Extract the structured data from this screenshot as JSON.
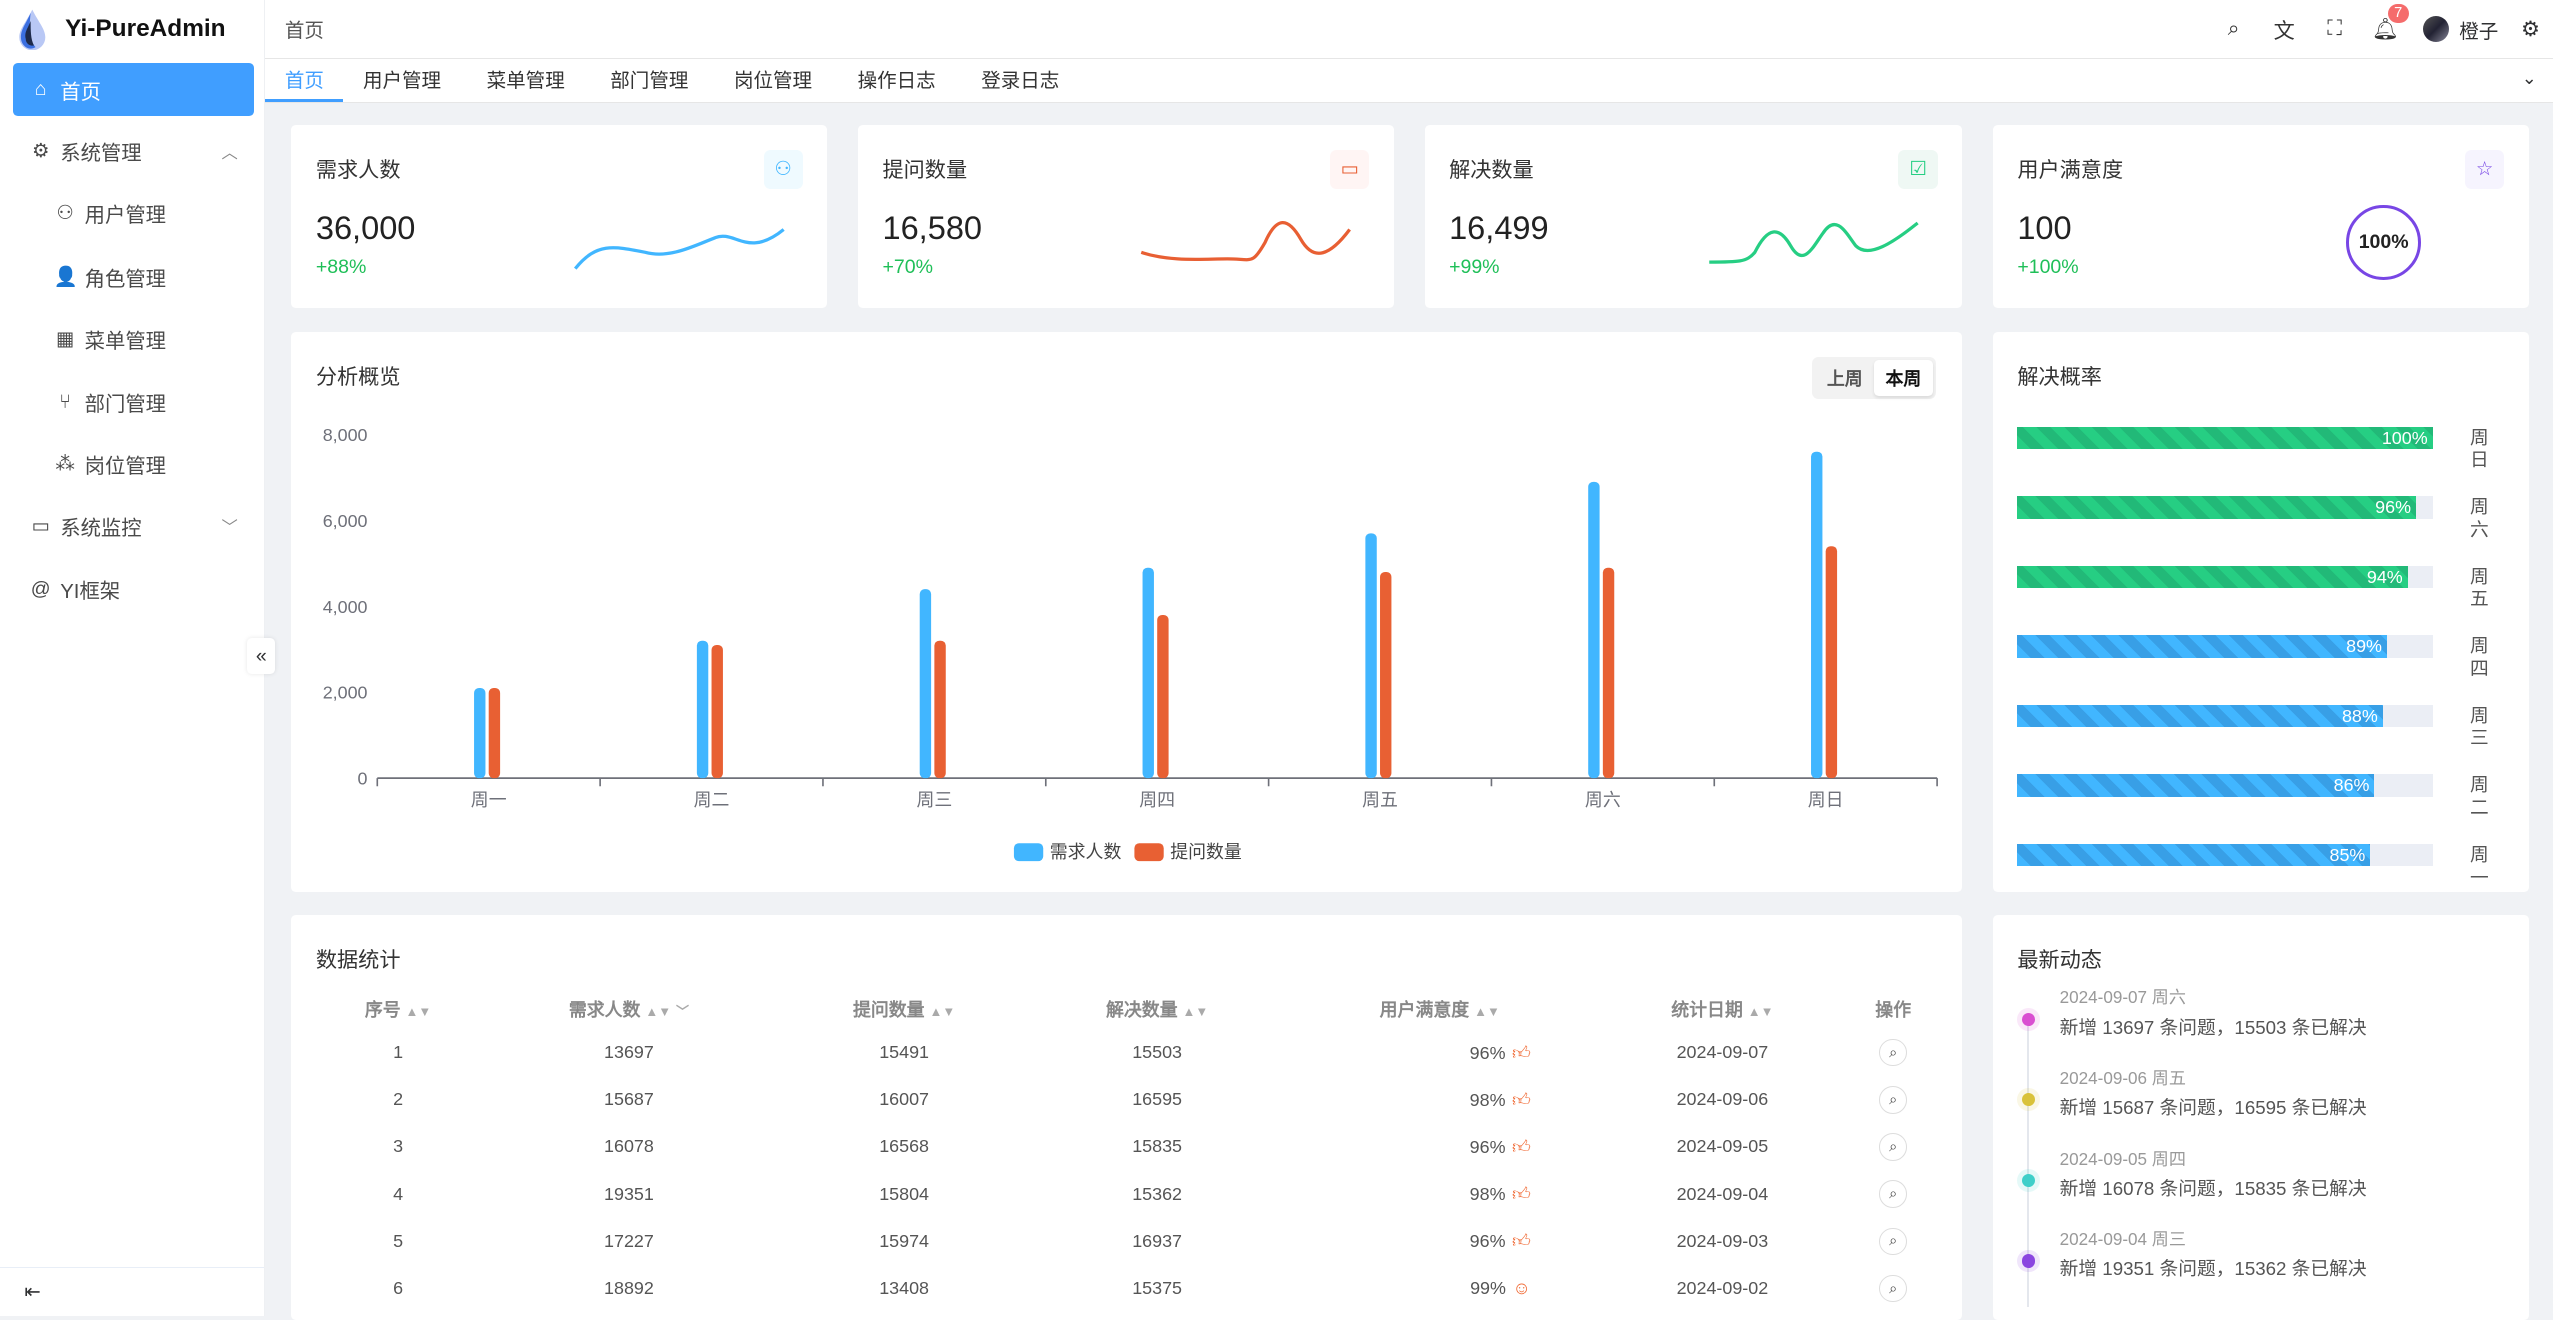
{
  "app": {
    "name": "Yi-PureAdmin"
  },
  "sidebar": {
    "items": [
      {
        "label": "首页",
        "icon": "home-icon",
        "active": true
      },
      {
        "label": "系统管理",
        "icon": "gear-icon",
        "expanded": true
      },
      {
        "label": "用户管理",
        "icon": "user-icon"
      },
      {
        "label": "角色管理",
        "icon": "role-icon"
      },
      {
        "label": "菜单管理",
        "icon": "grid-icon"
      },
      {
        "label": "部门管理",
        "icon": "branch-icon"
      },
      {
        "label": "岗位管理",
        "icon": "nodes-icon"
      },
      {
        "label": "系统监控",
        "icon": "monitor-icon",
        "expanded": false
      },
      {
        "label": "YI框架",
        "icon": "at-icon"
      }
    ]
  },
  "header": {
    "breadcrumb": "首页",
    "notification_count": "7",
    "username": "橙子"
  },
  "tabs": [
    "首页",
    "用户管理",
    "菜单管理",
    "部门管理",
    "岗位管理",
    "操作日志",
    "登录日志"
  ],
  "stats": [
    {
      "title": "需求人数",
      "value": "36,000",
      "percent": "+88%",
      "color": "#41b6ff"
    },
    {
      "title": "提问数量",
      "value": "16,580",
      "percent": "+70%",
      "color": "#e85f33"
    },
    {
      "title": "解决数量",
      "value": "16,499",
      "percent": "+99%",
      "color": "#26ce83"
    },
    {
      "title": "用户满意度",
      "value": "100",
      "percent": "+100%",
      "ring": "100%",
      "color": "#7846e5"
    }
  ],
  "overview": {
    "title": "分析概览",
    "toggle": [
      "上周",
      "本周"
    ],
    "active_toggle": "本周"
  },
  "chart_data": {
    "type": "bar",
    "categories": [
      "周一",
      "周二",
      "周三",
      "周四",
      "周五",
      "周六",
      "周日"
    ],
    "series": [
      {
        "name": "需求人数",
        "color": "#41b6ff",
        "values": [
          2100,
          3200,
          4400,
          4900,
          5700,
          6900,
          7600
        ]
      },
      {
        "name": "提问数量",
        "color": "#e86033",
        "values": [
          2100,
          3100,
          3200,
          3800,
          4800,
          4900,
          5400
        ]
      }
    ],
    "yticks": [
      "0",
      "2,000",
      "4,000",
      "6,000",
      "8,000"
    ],
    "ylim": [
      0,
      8000
    ],
    "legend": "bottom"
  },
  "resolve_rate": {
    "title": "解决概率",
    "items": [
      {
        "day": "周日",
        "percent": 100,
        "label": "100%",
        "color": "#26ce83"
      },
      {
        "day": "周六",
        "percent": 96,
        "label": "96%",
        "color": "#26ce83"
      },
      {
        "day": "周五",
        "percent": 94,
        "label": "94%",
        "color": "#26ce83"
      },
      {
        "day": "周四",
        "percent": 89,
        "label": "89%",
        "color": "#41b6ff"
      },
      {
        "day": "周三",
        "percent": 88,
        "label": "88%",
        "color": "#41b6ff"
      },
      {
        "day": "周二",
        "percent": 86,
        "label": "86%",
        "color": "#41b6ff"
      },
      {
        "day": "周一",
        "percent": 85,
        "label": "85%",
        "color": "#41b6ff"
      }
    ]
  },
  "table": {
    "title": "数据统计",
    "columns": [
      "序号",
      "需求人数",
      "提问数量",
      "解决数量",
      "用户满意度",
      "统计日期",
      "操作"
    ],
    "rows": [
      [
        "1",
        "13697",
        "15491",
        "15503",
        "96%",
        "2024-09-07"
      ],
      [
        "2",
        "15687",
        "16007",
        "16595",
        "98%",
        "2024-09-06"
      ],
      [
        "3",
        "16078",
        "16568",
        "15835",
        "96%",
        "2024-09-05"
      ],
      [
        "4",
        "19351",
        "15804",
        "15362",
        "98%",
        "2024-09-04"
      ],
      [
        "5",
        "17227",
        "15974",
        "16937",
        "96%",
        "2024-09-03"
      ],
      [
        "6",
        "18892",
        "13408",
        "15375",
        "99%",
        "2024-09-02"
      ]
    ]
  },
  "activity": {
    "title": "最新动态",
    "items": [
      {
        "date": "2024-09-07 周六",
        "text": "新增 13697 条问题，15503 条已解决",
        "color": "#d94fd1"
      },
      {
        "date": "2024-09-06 周五",
        "text": "新增 15687 条问题，16595 条已解决",
        "color": "#d9c23a"
      },
      {
        "date": "2024-09-05 周四",
        "text": "新增 16078 条问题，15835 条已解决",
        "color": "#3fcfc9"
      },
      {
        "date": "2024-09-04 周三",
        "text": "新增 19351 条问题，15362 条已解决",
        "color": "#8b46e0"
      }
    ]
  }
}
